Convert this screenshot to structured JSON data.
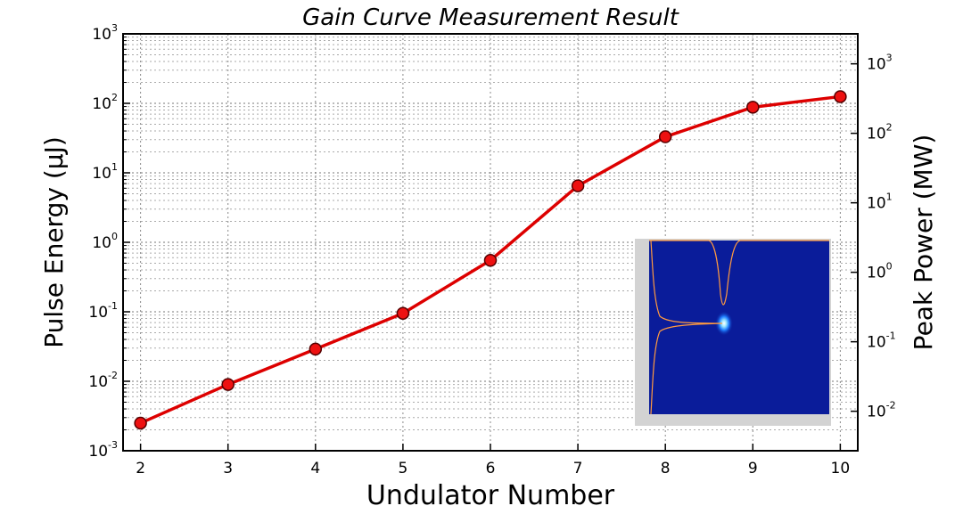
{
  "chart_data": {
    "type": "line",
    "title": "Gain Curve Measurement Result",
    "xlabel": "Undulator Number",
    "ylabel": "Pulse Energy (μJ)",
    "y2label": "Peak Power (MW)",
    "x": [
      2,
      3,
      4,
      5,
      6,
      7,
      8,
      9,
      10
    ],
    "series": [
      {
        "values": [
          0.0025,
          0.009,
          0.029,
          0.095,
          0.55,
          6.5,
          33,
          88,
          125
        ],
        "color": "#dd0000",
        "marker_fill": "#ee1111",
        "marker_edge": "#550000"
      }
    ],
    "xlim": [
      1.8,
      10.2
    ],
    "ylim": [
      0.001,
      1000
    ],
    "yscale": "log",
    "xticks": [
      "2",
      "3",
      "4",
      "5",
      "6",
      "7",
      "8",
      "9",
      "10"
    ],
    "yticks": [
      {
        "base": "10",
        "exp": "-3"
      },
      {
        "base": "10",
        "exp": "-2"
      },
      {
        "base": "10",
        "exp": "-1"
      },
      {
        "base": "10",
        "exp": "0"
      },
      {
        "base": "10",
        "exp": "1"
      },
      {
        "base": "10",
        "exp": "2"
      },
      {
        "base": "10",
        "exp": "3"
      }
    ],
    "y2scale": "log",
    "y2lim": [
      0.0027,
      2700
    ],
    "y2ticks": [
      {
        "base": "10",
        "exp": "-2"
      },
      {
        "base": "10",
        "exp": "-1"
      },
      {
        "base": "10",
        "exp": "0"
      },
      {
        "base": "10",
        "exp": "1"
      },
      {
        "base": "10",
        "exp": "2"
      },
      {
        "base": "10",
        "exp": "3"
      }
    ],
    "grid": true,
    "inset": "beam-profile-image"
  }
}
